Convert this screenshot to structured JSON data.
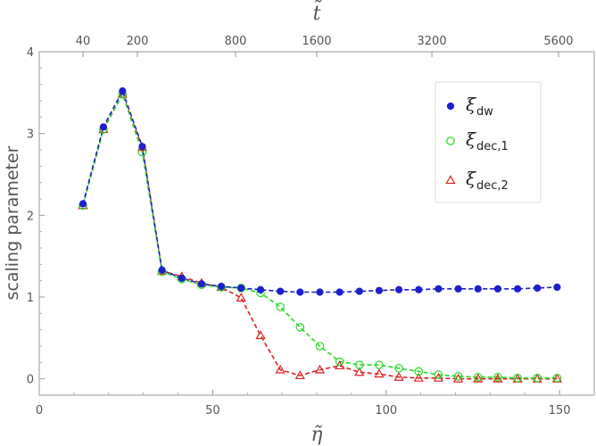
{
  "chart_data": {
    "type": "line",
    "xlabel": "η̃",
    "ylabel": "scaling parameter",
    "top_axis_label": "t̃",
    "xlim": [
      0,
      160
    ],
    "ylim": [
      -0.2,
      4
    ],
    "x_ticks": [
      0,
      50,
      100,
      150
    ],
    "x_tick_labels": [
      "0",
      "50",
      "100",
      "150"
    ],
    "y_ticks": [
      0,
      1,
      2,
      3,
      4
    ],
    "y_tick_labels": [
      "0",
      "1",
      "2",
      "3",
      "4"
    ],
    "top_ticks": [
      {
        "x": 12.6,
        "label": "40"
      },
      {
        "x": 28.3,
        "label": "200"
      },
      {
        "x": 56.6,
        "label": "800"
      },
      {
        "x": 80.0,
        "label": "1600"
      },
      {
        "x": 113.2,
        "label": "3200"
      },
      {
        "x": 149.7,
        "label": "5600"
      }
    ],
    "grid": false,
    "legend_position": "top-right",
    "series": [
      {
        "name": "ξ",
        "name_sub": "dw",
        "color": "#1f1fcc",
        "marker": "filled-circle",
        "x": [
          12.6,
          18.5,
          24.0,
          29.7,
          35.4,
          41.1,
          46.8,
          52.5,
          58.2,
          63.8,
          69.5,
          75.2,
          80.9,
          86.6,
          92.3,
          98.0,
          103.7,
          109.4,
          115.1,
          120.8,
          126.5,
          132.2,
          137.9,
          143.6,
          149.3
        ],
        "y": [
          2.14,
          3.08,
          3.52,
          2.84,
          1.33,
          1.23,
          1.16,
          1.13,
          1.11,
          1.09,
          1.07,
          1.06,
          1.06,
          1.06,
          1.07,
          1.08,
          1.09,
          1.09,
          1.1,
          1.1,
          1.1,
          1.1,
          1.1,
          1.11,
          1.12
        ]
      },
      {
        "name": "ξ",
        "name_sub": "dec,1",
        "color": "#22dd22",
        "marker": "open-circle",
        "x": [
          12.6,
          18.5,
          24.0,
          29.7,
          35.4,
          41.1,
          46.8,
          52.5,
          58.2,
          63.8,
          69.5,
          75.2,
          80.9,
          86.6,
          92.3,
          98.0,
          103.7,
          109.4,
          115.1,
          120.8,
          126.5,
          132.2,
          137.9,
          143.6,
          149.3
        ],
        "y": [
          2.12,
          3.05,
          3.48,
          2.77,
          1.31,
          1.22,
          1.15,
          1.12,
          1.11,
          1.05,
          0.88,
          0.63,
          0.4,
          0.21,
          0.17,
          0.17,
          0.13,
          0.09,
          0.05,
          0.03,
          0.02,
          0.02,
          0.01,
          0.01,
          0.01
        ]
      },
      {
        "name": "ξ",
        "name_sub": "dec,2",
        "color": "#dd2222",
        "marker": "open-triangle",
        "x": [
          12.6,
          18.5,
          24.0,
          29.7,
          35.4,
          41.1,
          46.8,
          52.5,
          58.2,
          63.8,
          69.5,
          75.2,
          80.9,
          86.6,
          92.3,
          98.0,
          103.7,
          109.4,
          115.1,
          120.8,
          126.5,
          132.2,
          137.9,
          143.6,
          149.3
        ],
        "y": [
          2.12,
          3.05,
          3.48,
          2.83,
          1.32,
          1.25,
          1.17,
          1.12,
          0.99,
          0.53,
          0.11,
          0.04,
          0.11,
          0.16,
          0.08,
          0.06,
          0.02,
          0.01,
          0.01,
          0.0,
          0.0,
          0.0,
          0.0,
          0.0,
          0.0
        ]
      }
    ]
  }
}
